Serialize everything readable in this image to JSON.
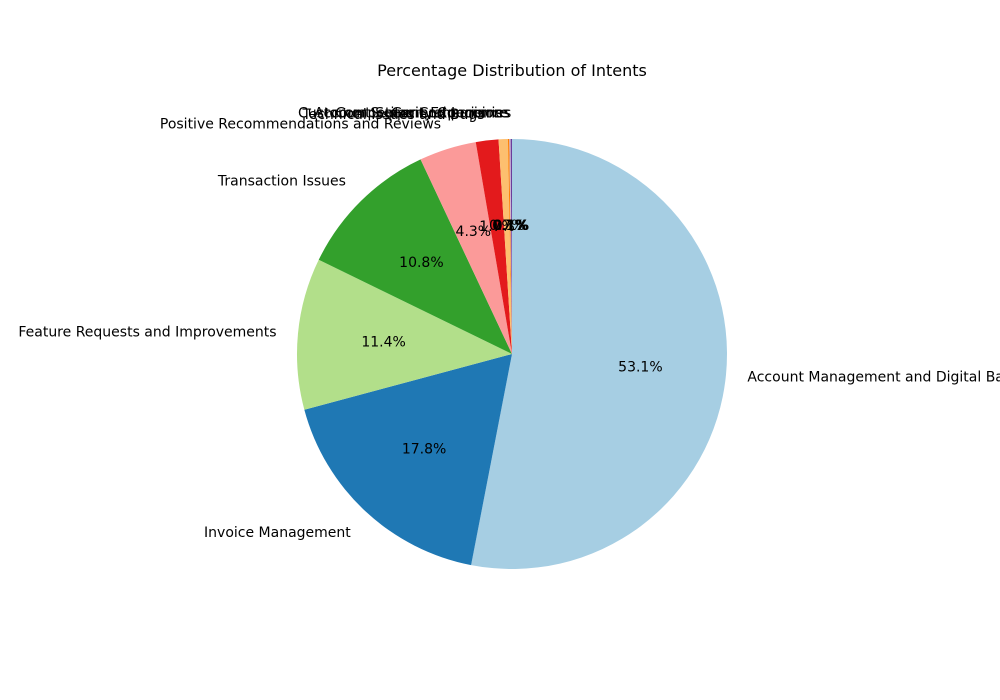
{
  "chart_data": {
    "type": "pie",
    "title": "Percentage Distribution of Intents",
    "start_angle_deg": 90,
    "direction": "clockwise",
    "slices": [
      {
        "label": "Account Management and Digital Banking",
        "value": 53.1,
        "pct_text": "53.1%",
        "color": "#a6cee3"
      },
      {
        "label": "Invoice Management",
        "value": 17.8,
        "pct_text": "17.8%",
        "color": "#1f78b4"
      },
      {
        "label": "Feature Requests and Improvements",
        "value": 11.4,
        "pct_text": "11.4%",
        "color": "#b2df8a"
      },
      {
        "label": "Transaction Issues",
        "value": 10.8,
        "pct_text": "10.8%",
        "color": "#33a02c"
      },
      {
        "label": "Positive Recommendations and Reviews",
        "value": 4.3,
        "pct_text": "4.3%",
        "color": "#fb9a99"
      },
      {
        "label": "Technical Issues and Bugs",
        "value": 1.7,
        "pct_text": "1.7%",
        "color": "#e31a1c"
      },
      {
        "label": "Account Security Concerns",
        "value": 0.7,
        "pct_text": "0.7%",
        "color": "#fdbf6f"
      },
      {
        "label": "Customer Support Experience",
        "value": 0.1,
        "pct_text": "0.1%",
        "color": "#ff7f00"
      },
      {
        "label": "Competitor Comparisons",
        "value": 0.1,
        "pct_text": "0.1%",
        "color": "#cab2d6"
      },
      {
        "label": "General Inquiries",
        "value": 0.1,
        "pct_text": "0.1%",
        "color": "#6a3d9a"
      }
    ]
  }
}
